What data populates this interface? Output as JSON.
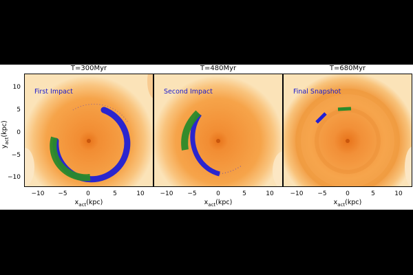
{
  "figure": {
    "panels": [
      {
        "title": "T=300Myr",
        "label": "First Impact"
      },
      {
        "title": "T=480Myr",
        "label": "Second Impact"
      },
      {
        "title": "T=680Myr",
        "label": "Final Snapshot"
      }
    ],
    "xlabel_main": "x",
    "xlabel_sub": "act",
    "xlabel_unit": "(kpc)",
    "ylabel_main": "y",
    "ylabel_sub": "act",
    "ylabel_unit": "(kpc)",
    "xticks": [
      "−10",
      "−5",
      "0",
      "5",
      "10"
    ],
    "yticks": [
      "10",
      "5",
      "0",
      "−5",
      "−10"
    ],
    "colors": {
      "disk": "#f39a3a",
      "disk_outer": "#f7b45a",
      "background": "#fbe3b8",
      "stream_a": "#1f1fd6",
      "stream_b": "#2a8a2a",
      "label": "#1a1acc"
    }
  }
}
